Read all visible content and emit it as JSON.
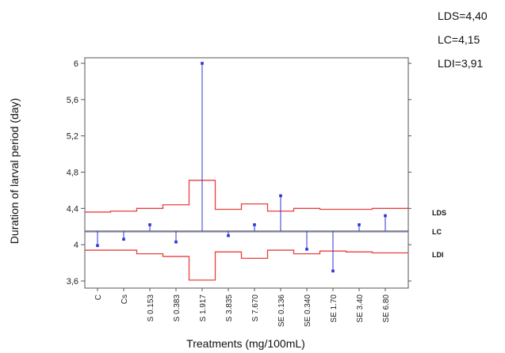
{
  "stats": {
    "lds": "LDS=4,40",
    "lc": "LC=4,15",
    "ldi": "LDI=3,91"
  },
  "chart_data": {
    "type": "analysis-of-means",
    "xlabel": "Treatments (mg/100mL)",
    "ylabel": "Duration of larval period (day)",
    "ylim": [
      3.6,
      6.0
    ],
    "yticks": [
      3.6,
      4.0,
      4.4,
      4.8,
      5.2,
      5.6,
      6.0
    ],
    "ytick_labels": [
      "3,6",
      "4",
      "4,4",
      "4,8",
      "5,2",
      "5,6",
      "6"
    ],
    "categories": [
      "C",
      "Cs",
      "S 0.153",
      "S 0.383",
      "S 1.917",
      "S 3.835",
      "S 7.670",
      "SE 0.136",
      "SE 0.340",
      "SE 1.70",
      "SE 3.40",
      "SE 6.80"
    ],
    "means": [
      3.99,
      4.06,
      4.22,
      4.03,
      6.0,
      4.1,
      4.22,
      4.54,
      3.95,
      3.71,
      4.22,
      4.32
    ],
    "center_line": 4.15,
    "upper_limits": [
      4.36,
      4.37,
      4.4,
      4.44,
      4.71,
      4.39,
      4.45,
      4.37,
      4.4,
      4.39,
      4.39,
      4.4
    ],
    "lower_limits": [
      3.94,
      3.94,
      3.9,
      3.87,
      3.61,
      3.92,
      3.85,
      3.94,
      3.9,
      3.93,
      3.92,
      3.91
    ],
    "line_labels": {
      "upper": "LDS",
      "center": "LC",
      "lower": "LDI"
    },
    "grid": false,
    "colors": {
      "limits": "#e8413c",
      "means": "#2b35d6",
      "center": "#555555"
    }
  }
}
